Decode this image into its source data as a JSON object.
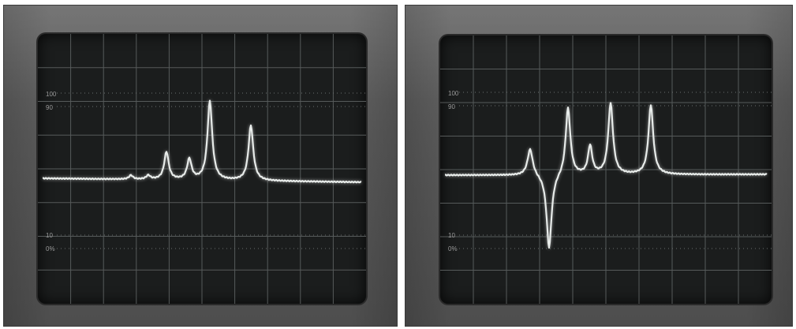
{
  "scope_left": {
    "markers": [
      "100",
      "90",
      "10",
      "0%"
    ]
  },
  "scope_right": {
    "markers": [
      "100",
      "90",
      "10",
      "0%"
    ]
  },
  "colors": {
    "bezel": "#5b5b5b",
    "screen": "#1b1d1d",
    "grid": "#565a5a",
    "trace": "#e8ecea"
  }
}
